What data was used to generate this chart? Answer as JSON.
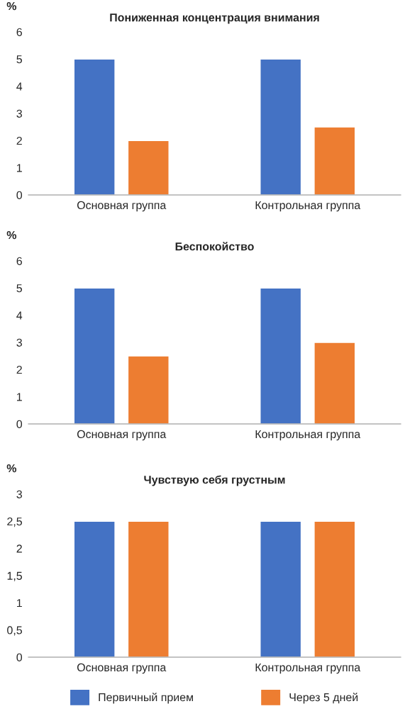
{
  "chart_data": [
    {
      "type": "bar",
      "title": "Пониженная концентрация внимания",
      "ylabel": "%",
      "categories": [
        "Основная группа",
        "Контрольная группа"
      ],
      "series": [
        {
          "color": "#4472c4",
          "values": [
            5,
            5
          ]
        },
        {
          "color": "#ed7d31",
          "values": [
            2,
            2.5
          ]
        }
      ],
      "ylim": [
        0,
        6
      ],
      "yticks": [
        0,
        1,
        2,
        3,
        4,
        5,
        6
      ]
    },
    {
      "type": "bar",
      "title": "Беспокойство",
      "ylabel": "%",
      "categories": [
        "Основная группа",
        "Контрольная группа"
      ],
      "series": [
        {
          "color": "#4472c4",
          "values": [
            5,
            5
          ]
        },
        {
          "color": "#ed7d31",
          "values": [
            2.5,
            3
          ]
        }
      ],
      "ylim": [
        0,
        6
      ],
      "yticks": [
        0,
        1,
        2,
        3,
        4,
        5,
        6
      ]
    },
    {
      "type": "bar",
      "title": "Чувствую себя грустным",
      "ylabel": "%",
      "categories": [
        "Основная группа",
        "Контрольная группа"
      ],
      "series": [
        {
          "name": "Первичный прием",
          "color": "#4472c4",
          "values": [
            2.5,
            2.5
          ]
        },
        {
          "name": "Через 5 дней",
          "color": "#ed7d31",
          "values": [
            2.5,
            2.5
          ]
        }
      ],
      "ylim": [
        0,
        3
      ],
      "yticks": [
        0,
        {
          "value": 0.5,
          "label": "0,5"
        },
        1,
        {
          "value": 1.5,
          "label": "1,5"
        },
        2,
        {
          "value": 2.5,
          "label": "2,5"
        },
        3
      ],
      "legend": "bottom"
    }
  ]
}
